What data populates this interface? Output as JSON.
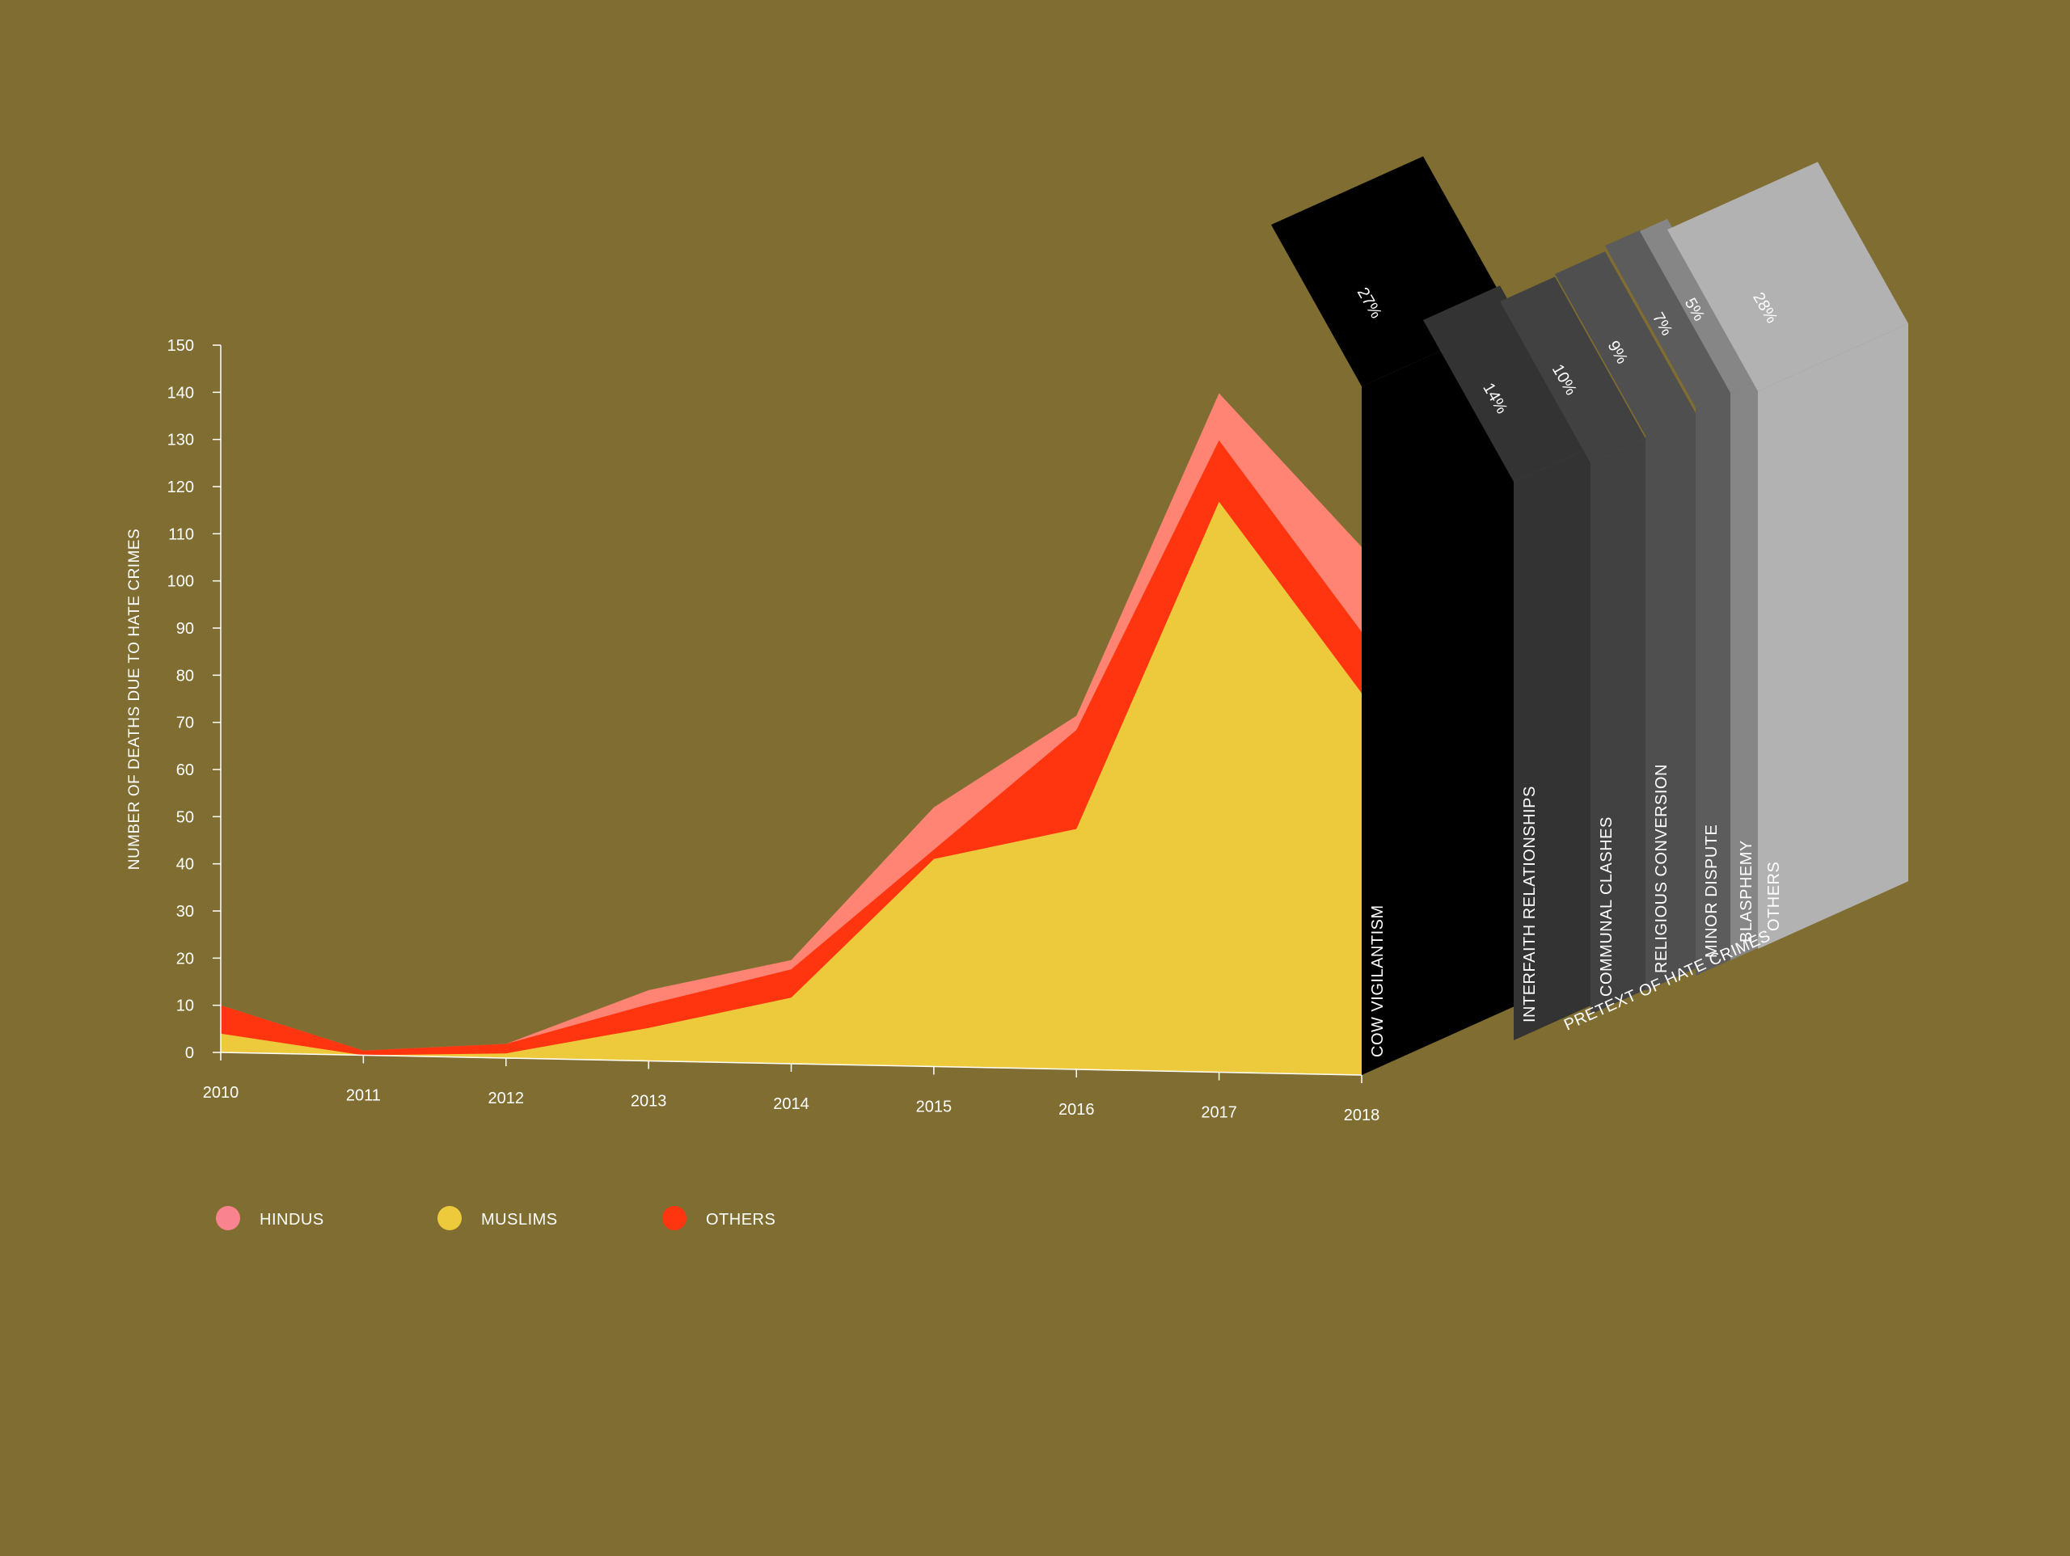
{
  "chart_data": {
    "type": "area",
    "ylabel": "NUMBER OF DEATHS DUE TO HATE CRIMES",
    "ylim": [
      0,
      150
    ],
    "yticks": [
      0,
      10,
      20,
      30,
      40,
      50,
      60,
      70,
      80,
      90,
      100,
      110,
      120,
      130,
      140,
      150
    ],
    "categories": [
      "2010",
      "2011",
      "2012",
      "2013",
      "2014",
      "2015",
      "2016",
      "2017",
      "2018"
    ],
    "stacked": true,
    "series": [
      {
        "name": "MUSLIMS",
        "color": "#edca3c",
        "values": [
          4,
          0,
          1,
          7,
          14,
          44,
          51,
          121,
          81
        ]
      },
      {
        "name": "OTHERS",
        "color": "#ff3510",
        "values": [
          6,
          1,
          2,
          5,
          6,
          2,
          21,
          13,
          13
        ]
      },
      {
        "name": "HINDUS",
        "color": "#ff8473",
        "values": [
          0,
          0,
          0,
          3,
          2,
          9,
          3,
          10,
          18
        ]
      }
    ],
    "legend": {
      "position": "bottom-left",
      "items": [
        "HINDUS",
        "MUSLIMS",
        "OTHERS"
      ]
    },
    "pretext": {
      "title": "PRETEXT OF HATE CRIMES",
      "categories": [
        {
          "label": "COW VIGILANTISM",
          "percent": "27%",
          "value": 27,
          "color": "#000000"
        },
        {
          "label": "INTERFAITH RELATIONSHIPS",
          "percent": "14%",
          "value": 14,
          "color": "#333333"
        },
        {
          "label": "COMMUNAL CLASHES",
          "percent": "10%",
          "value": 10,
          "color": "#414141"
        },
        {
          "label": "RELIGIOUS CONVERSION",
          "percent": "9%",
          "value": 9,
          "color": "#4f4f4f"
        },
        {
          "label": "MINOR DISPUTE",
          "percent": "7%",
          "value": 7,
          "color": "#5c5c5c"
        },
        {
          "label": "BLASPHEMY",
          "percent": "5%",
          "value": 5,
          "color": "#868686"
        },
        {
          "label": "OTHERS",
          "percent": "28%",
          "value": 28,
          "color": "#b2b2b2"
        }
      ]
    }
  }
}
